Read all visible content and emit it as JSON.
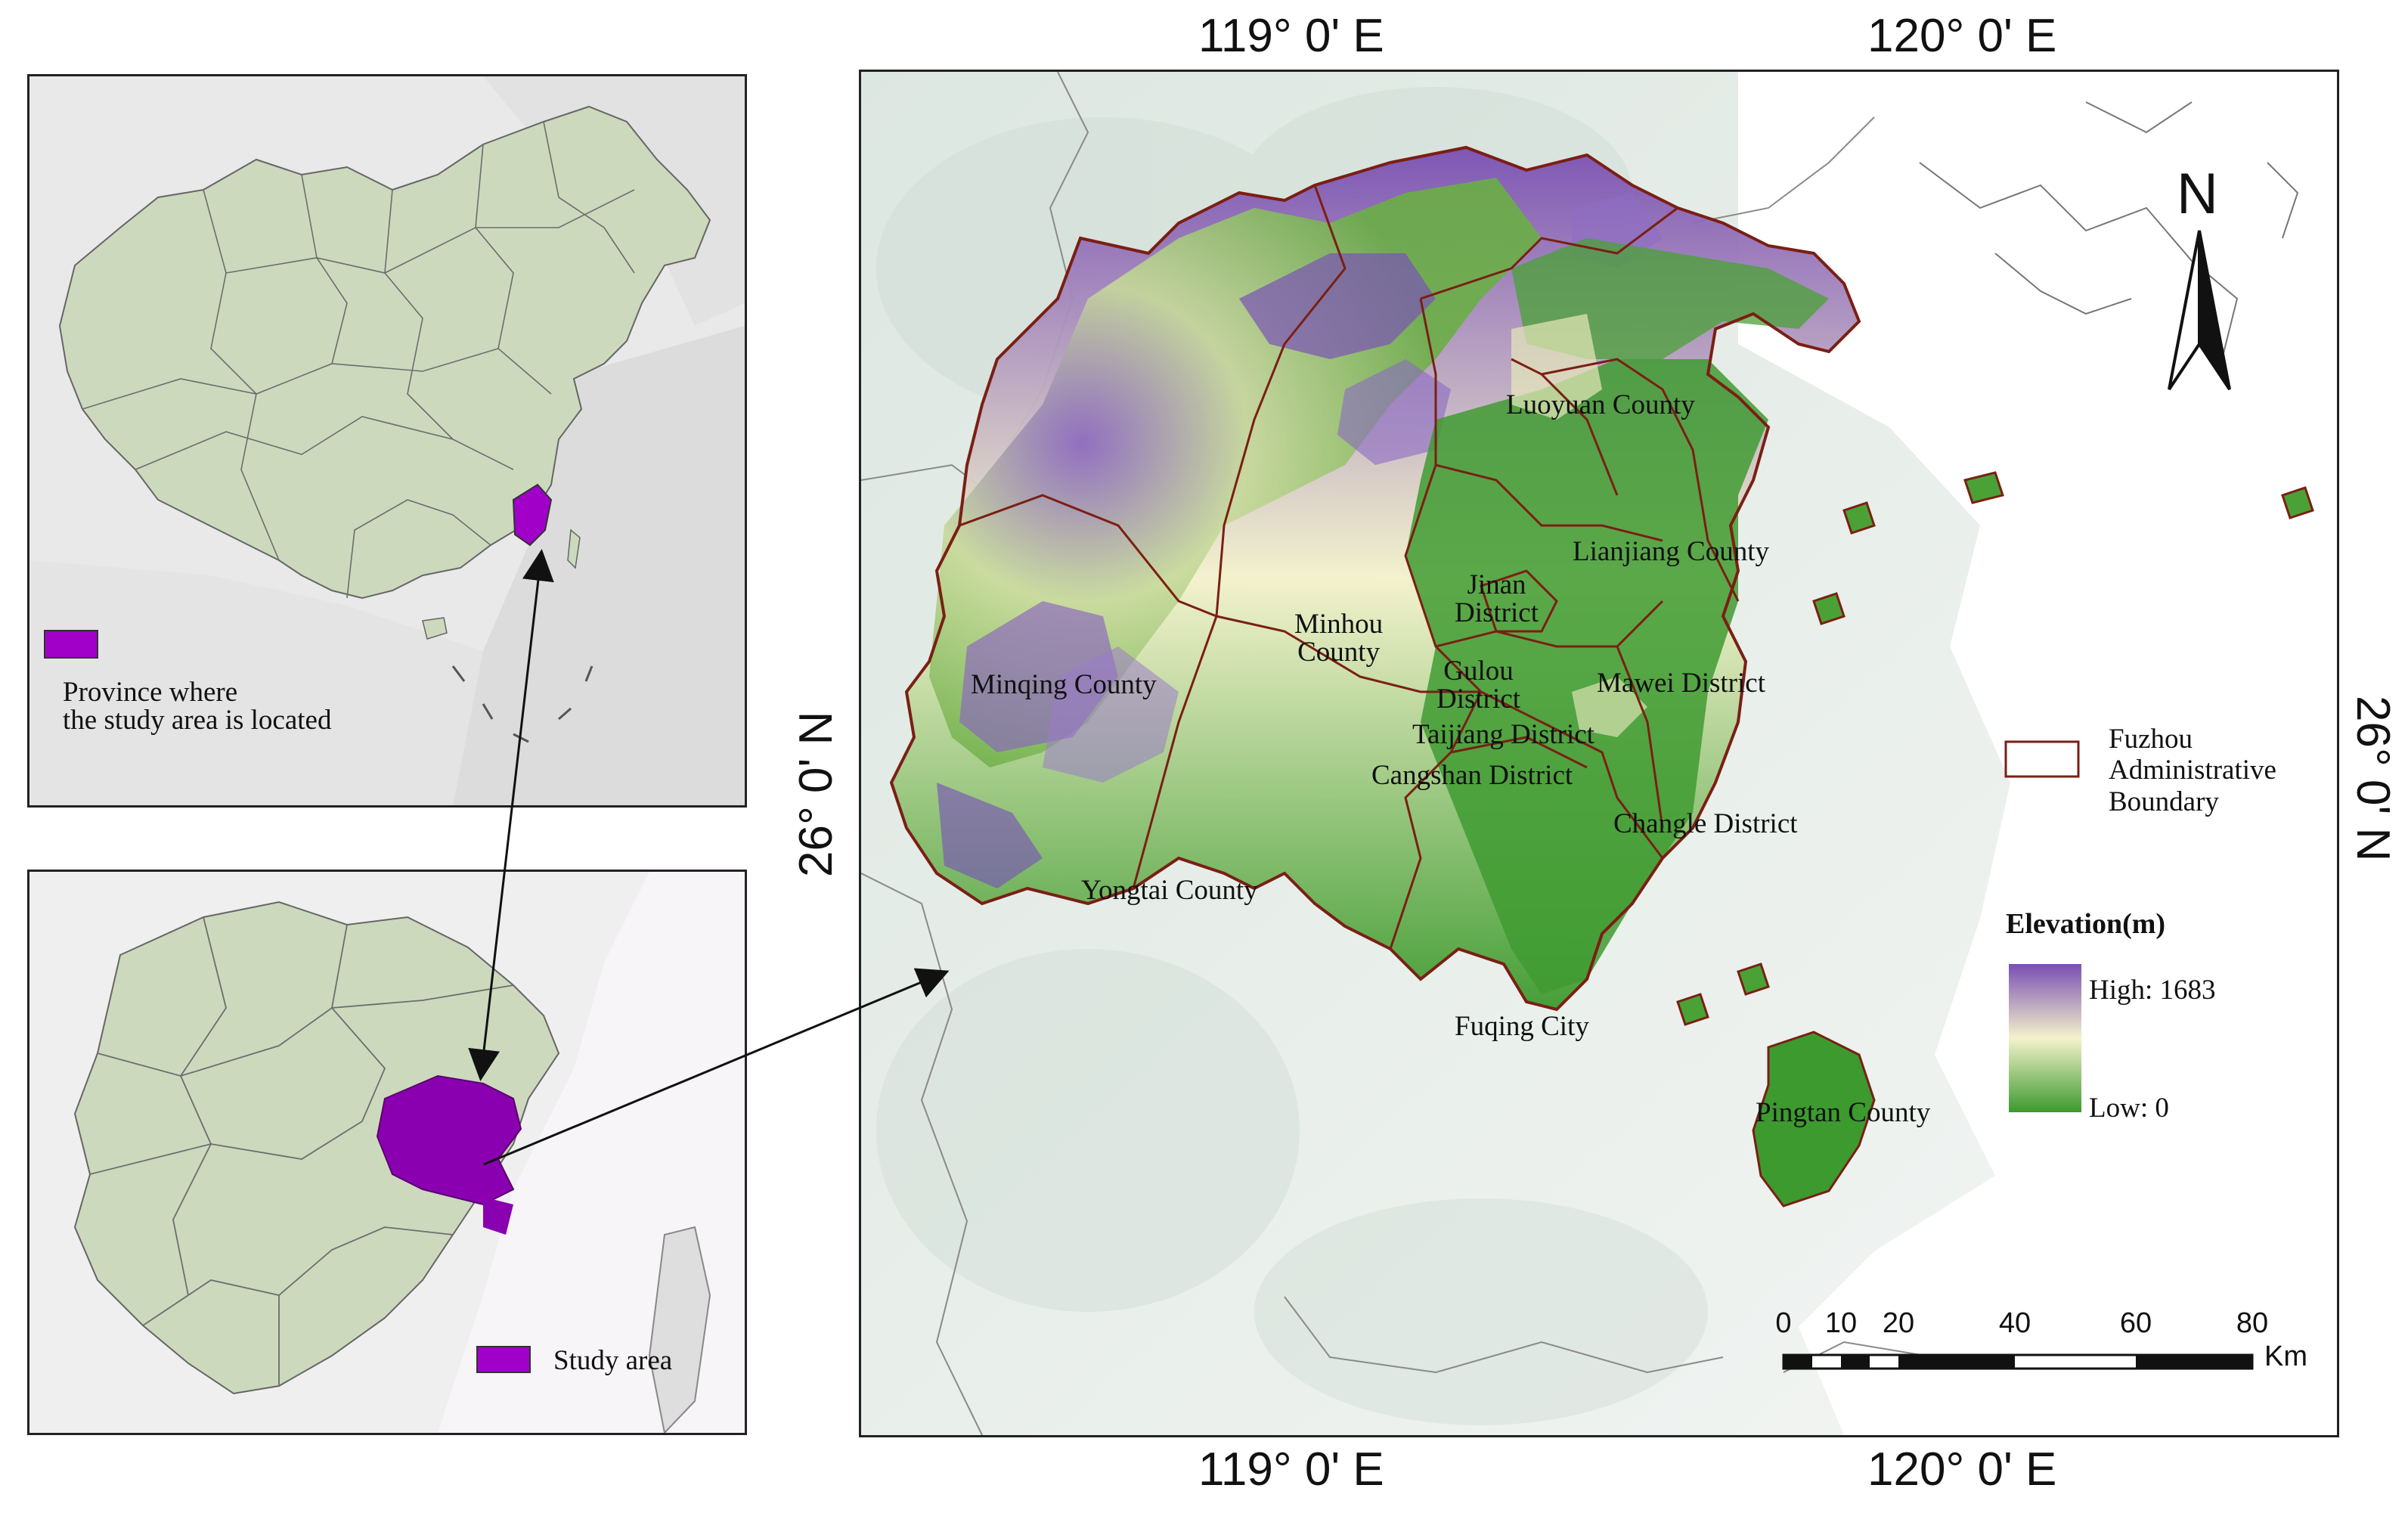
{
  "coordinates": {
    "top_left": "119° 0' E",
    "top_right": "120° 0' E",
    "bottom_left": "119° 0' E",
    "bottom_right": "120° 0' E",
    "left_lat": "26° 0' N",
    "right_lat": "26° 0' N"
  },
  "inset_china": {
    "legend_label_line1": "Province where",
    "legend_label_line2": "the study area is located",
    "swatch_color": "#a000c8"
  },
  "inset_fujian": {
    "legend_label": "Study area",
    "swatch_color": "#a000c8"
  },
  "districts": {
    "luoyuan": "Luoyuan County",
    "lianjiang": "Lianjiang County",
    "jinan_1": "Jinan",
    "jinan_2": "District",
    "minhou_1": "Minhou",
    "minhou_2": "County",
    "minqing": "Minqing County",
    "gulou_1": "Gulou",
    "gulou_2": "District",
    "mawei": "Mawei District",
    "taijiang": "Taijiang District",
    "cangshan": "Cangshan District",
    "changle": "Changle District",
    "yongtai": "Yongtai County",
    "fuqing": "Fuqing City",
    "pingtan": "Pingtan County"
  },
  "legend": {
    "boundary_line1": "Fuzhou",
    "boundary_line2": "Administrative",
    "boundary_line3": "Boundary",
    "elevation_title": "Elevation(m)",
    "high_label": "High: 1683",
    "low_label": "Low: 0",
    "high_color": "#7a4fb3",
    "mid_color": "#f4f2cc",
    "low_color": "#3d9a2e"
  },
  "north_arrow": {
    "label": "N"
  },
  "scale_bar": {
    "ticks": [
      "0",
      "10",
      "20",
      "40",
      "60",
      "80"
    ],
    "unit": "Km"
  }
}
